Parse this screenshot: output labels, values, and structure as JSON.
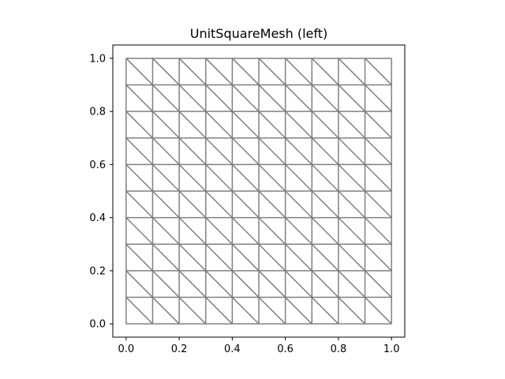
{
  "chart_data": {
    "type": "mesh",
    "title": "UnitSquareMesh (left)",
    "xlabel": "",
    "ylabel": "",
    "xlim": [
      -0.05,
      1.05
    ],
    "ylim": [
      -0.05,
      1.05
    ],
    "xticks": [
      0.0,
      0.2,
      0.4,
      0.6,
      0.8,
      1.0
    ],
    "yticks": [
      0.0,
      0.2,
      0.4,
      0.6,
      0.8,
      1.0
    ],
    "xtick_labels": [
      "0.0",
      "0.2",
      "0.4",
      "0.6",
      "0.8",
      "1.0"
    ],
    "ytick_labels": [
      "0.0",
      "0.2",
      "0.4",
      "0.6",
      "0.8",
      "1.0"
    ],
    "mesh": {
      "nx": 10,
      "ny": 10,
      "diagonal": "left",
      "x_range": [
        0.0,
        1.0
      ],
      "y_range": [
        0.0,
        1.0
      ]
    },
    "grid": false,
    "aspect": "equal",
    "colors": {
      "mesh_edge": "#808080",
      "axes_frame": "#000000",
      "background": "#ffffff"
    }
  }
}
